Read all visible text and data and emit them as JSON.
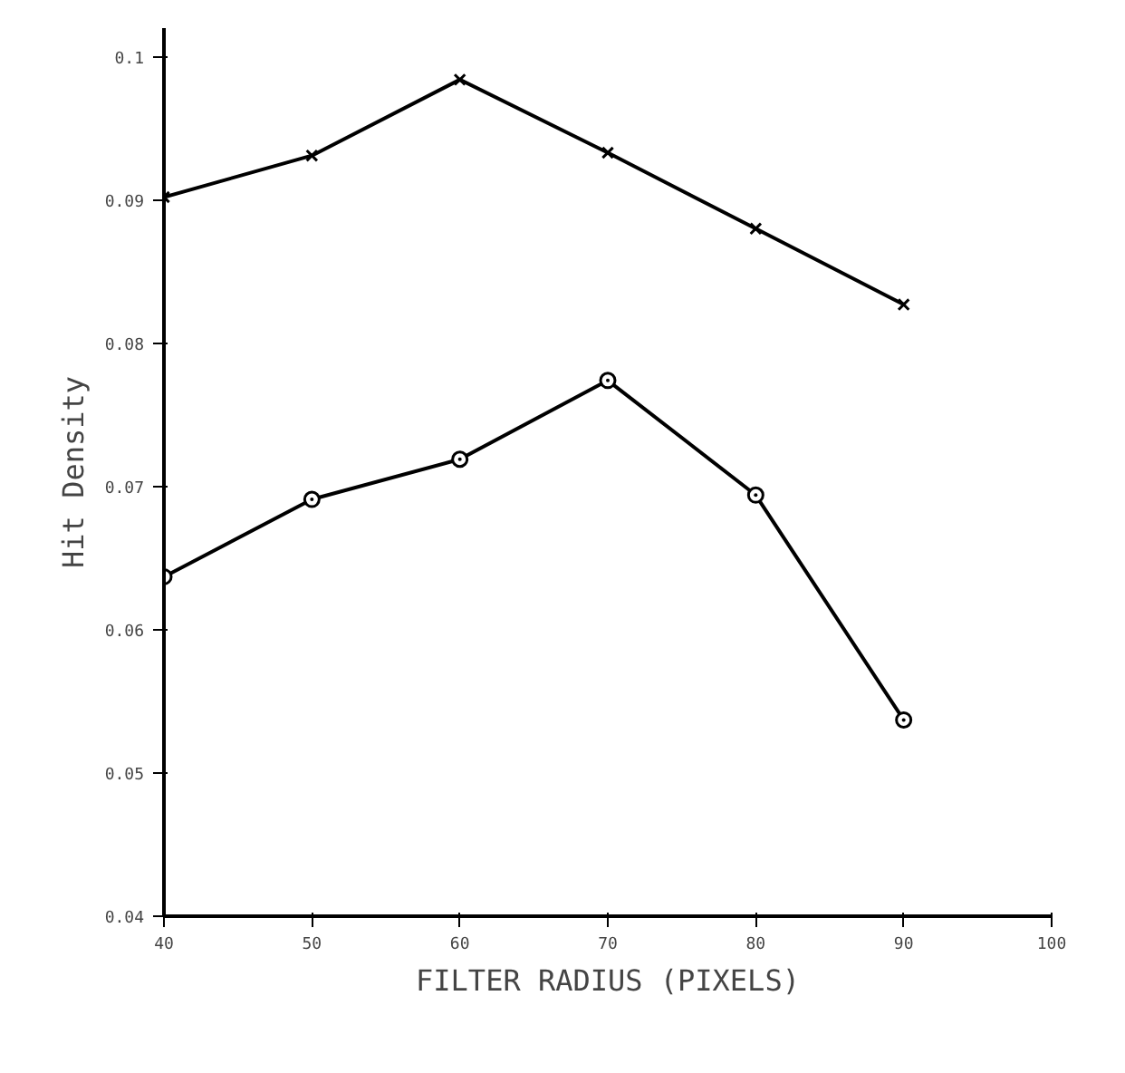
{
  "chart_data": {
    "type": "line",
    "xlabel": "FILTER RADIUS (PIXELS)",
    "ylabel": "Hit Density",
    "x": [
      40,
      50,
      60,
      70,
      80,
      90
    ],
    "series": [
      {
        "color": "#000000",
        "marker": "cross",
        "values": [
          0.0902,
          0.0931,
          0.0984,
          0.0933,
          0.088,
          0.0827
        ]
      },
      {
        "color": "#000000",
        "marker": "circle",
        "values": [
          0.0637,
          0.0691,
          0.0719,
          0.0774,
          0.0694,
          0.0537
        ]
      }
    ],
    "xlim": [
      40,
      100
    ],
    "xticks": [
      40,
      50,
      60,
      70,
      80,
      90,
      100
    ],
    "ylim": [
      0.04,
      0.102
    ],
    "yticks": [
      0.04,
      0.05,
      0.06,
      0.07,
      0.08,
      0.09,
      {
        "value": 0.1,
        "label": "0.1"
      }
    ],
    "grid": false,
    "line_style": "solid"
  }
}
